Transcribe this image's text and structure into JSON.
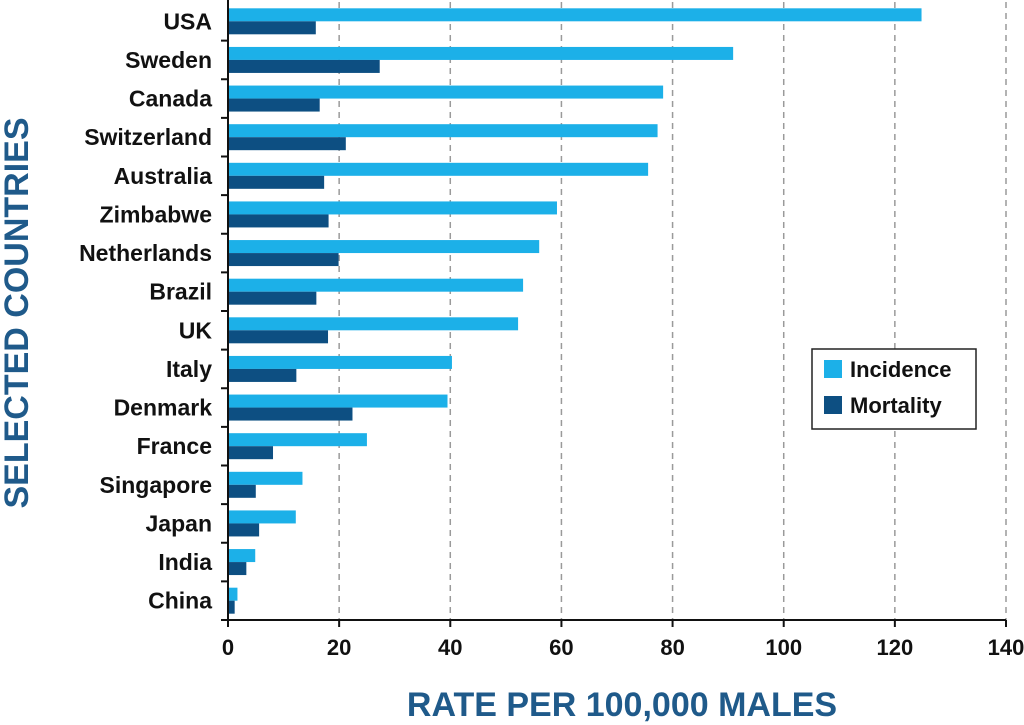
{
  "chart_data": {
    "type": "bar",
    "orientation": "horizontal",
    "xlabel": "RATE PER 100,000 MALES",
    "ylabel": "SELECTED COUNTRIES",
    "xlim": [
      0,
      140
    ],
    "xticks": [
      "0",
      "20",
      "40",
      "60",
      "80",
      "100",
      "120",
      "140"
    ],
    "grid": "vertical dashed",
    "legend_position": "right",
    "categories": [
      "USA",
      "Sweden",
      "Canada",
      "Switzerland",
      "Australia",
      "Zimbabwe",
      "Netherlands",
      "Brazil",
      "UK",
      "Italy",
      "Denmark",
      "France",
      "Singapore",
      "Japan",
      "India",
      "China"
    ],
    "series": [
      {
        "name": "Incidence",
        "color": "#1cb0e8",
        "values": [
          124.8,
          90.9,
          78.3,
          77.3,
          75.6,
          59.2,
          56.0,
          53.1,
          52.2,
          40.3,
          39.5,
          25.0,
          13.4,
          12.2,
          4.9,
          1.7
        ]
      },
      {
        "name": "Mortality",
        "color": "#0d4f82",
        "values": [
          15.8,
          27.3,
          16.5,
          21.2,
          17.3,
          18.1,
          19.9,
          15.9,
          18.0,
          12.3,
          22.4,
          8.1,
          5.0,
          5.6,
          3.3,
          1.2
        ]
      }
    ]
  }
}
